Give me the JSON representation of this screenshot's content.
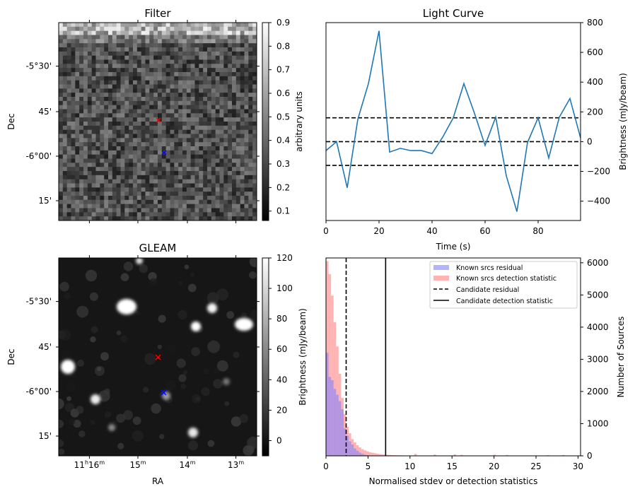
{
  "figure": {
    "panels": {
      "filter": {
        "title": "Filter",
        "ylabel": "Dec",
        "cbar_label": "arbitrary units"
      },
      "light_curve": {
        "title": "Light Curve",
        "xlabel": "Time (s)",
        "ylabel": "Brightness (mJy/beam)"
      },
      "gleam": {
        "title": "GLEAM",
        "xlabel": "RA",
        "ylabel": "Dec",
        "cbar_label": "Brightness (mJy/beam)"
      },
      "histogram": {
        "xlabel": "Normalised stdev or detection statistics",
        "ylabel": "Number of Sources"
      }
    },
    "dec_ticks": [
      "-5°30'",
      "45'",
      "-6°00'",
      "15'"
    ],
    "ra_ticks": [
      "11h16m",
      "15m",
      "14m",
      "13m"
    ],
    "colors": {
      "line": "#1f77b4",
      "residual_hist": "#8080ff",
      "detection_hist": "#ff8080",
      "markers_red": "#ff0000",
      "markers_blue": "#0000ff"
    }
  },
  "chart_data": [
    {
      "type": "heatmap",
      "title": "Filter",
      "ylabel": "Dec",
      "colorbar": {
        "label": "arbitrary units",
        "range": [
          0.06,
          0.9
        ],
        "ticks": [
          0.1,
          0.2,
          0.3,
          0.4,
          0.5,
          0.6,
          0.7,
          0.8,
          0.9
        ]
      },
      "markers": [
        {
          "symbol": "x",
          "color": "red"
        },
        {
          "symbol": "x",
          "color": "blue"
        }
      ]
    },
    {
      "type": "line",
      "title": "Light Curve",
      "xlabel": "Time (s)",
      "ylabel": "Brightness (mJy/beam)",
      "xlim": [
        0,
        96
      ],
      "ylim": [
        -530,
        800
      ],
      "xticks": [
        0,
        20,
        40,
        60,
        80
      ],
      "yticks": [
        -400,
        -200,
        0,
        200,
        400,
        600,
        800
      ],
      "x": [
        0,
        4,
        8,
        12,
        16,
        20,
        24,
        28,
        32,
        36,
        40,
        44,
        48,
        52,
        56,
        60,
        64,
        68,
        72,
        76,
        80,
        84,
        88,
        92,
        96
      ],
      "series": [
        {
          "values": [
            -60,
            0,
            -310,
            150,
            390,
            745,
            -70,
            -45,
            -60,
            -60,
            -80,
            30,
            160,
            390,
            190,
            -25,
            165,
            -230,
            -470,
            -5,
            160,
            -110,
            165,
            290,
            25
          ]
        }
      ],
      "hlines": [
        160,
        0,
        -160
      ]
    },
    {
      "type": "heatmap",
      "title": "GLEAM",
      "xlabel": "RA",
      "ylabel": "Dec",
      "colorbar": {
        "label": "Brightness (mJy/beam)",
        "range": [
          -10,
          120
        ],
        "ticks": [
          0,
          20,
          40,
          60,
          80,
          100,
          120
        ]
      },
      "markers": [
        {
          "symbol": "x",
          "color": "red"
        },
        {
          "symbol": "x",
          "color": "blue"
        }
      ]
    },
    {
      "type": "bar",
      "xlabel": "Normalised stdev or detection statistics",
      "ylabel": "Number of Sources",
      "xlim": [
        0,
        30.3
      ],
      "ylim": [
        0,
        6150
      ],
      "xticks": [
        0,
        5,
        10,
        15,
        20,
        25,
        30
      ],
      "yticks": [
        0,
        1000,
        2000,
        3000,
        4000,
        5000,
        6000
      ],
      "bin_width": 0.3,
      "series": [
        {
          "name": "Known srcs residual",
          "values": [
            3200,
            2450,
            2350,
            2080,
            1900,
            1700,
            1450,
            850,
            620,
            450,
            350,
            230,
            160,
            100,
            60,
            35,
            20,
            10,
            5,
            2
          ]
        },
        {
          "name": "Known srcs detection statistic",
          "values": [
            6050,
            5650,
            4980,
            4150,
            3400,
            2550,
            1800,
            1300,
            900,
            700,
            520,
            420,
            330,
            260,
            210,
            170,
            140,
            115,
            95,
            80,
            66,
            55,
            46,
            38,
            32,
            27,
            23,
            20,
            17,
            15,
            13,
            11,
            10,
            9,
            8,
            7,
            6,
            6,
            5,
            5
          ]
        }
      ],
      "vlines": [
        {
          "name": "Candidate residual",
          "x": 2.4,
          "style": "dashed"
        },
        {
          "name": "Candidate detection statistic",
          "x": 7.1,
          "style": "solid"
        }
      ],
      "legend": "top-right"
    }
  ]
}
